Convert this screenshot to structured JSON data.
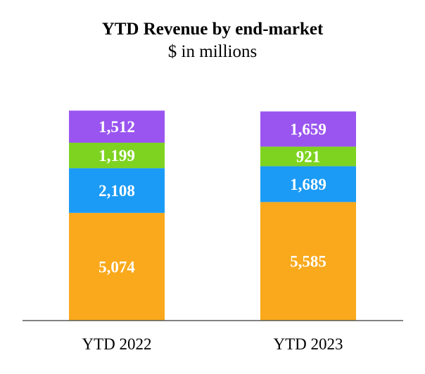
{
  "chart_data": {
    "type": "bar",
    "stacked": true,
    "title": "YTD Revenue by end-market",
    "subtitle": "$ in millions",
    "categories": [
      "YTD 2022",
      "YTD 2023"
    ],
    "series": [
      {
        "values": [
          5074,
          5585
        ],
        "labels": [
          "5,074",
          "5,585"
        ],
        "color": "#F9A91B"
      },
      {
        "values": [
          2108,
          1689
        ],
        "labels": [
          "2,108",
          "1,689"
        ],
        "color": "#1B9BF5"
      },
      {
        "values": [
          1199,
          921
        ],
        "labels": [
          "1,199",
          "921"
        ],
        "color": "#7ED321"
      },
      {
        "values": [
          1512,
          1659
        ],
        "labels": [
          "1,512",
          "1,659"
        ],
        "color": "#9A55F0"
      }
    ],
    "legend": "none",
    "grid": false,
    "axis_color": "#595959"
  }
}
